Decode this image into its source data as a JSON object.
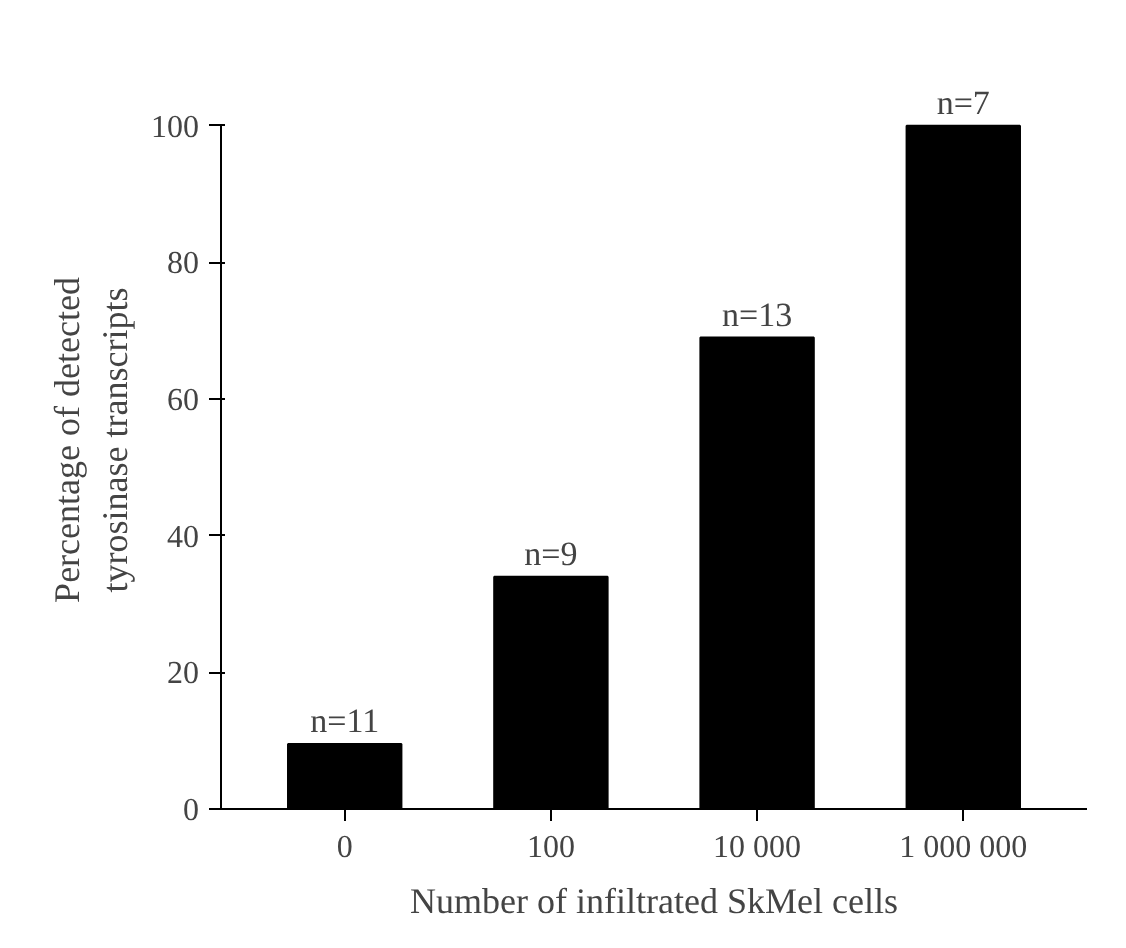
{
  "chart_data": {
    "type": "bar",
    "xlabel": "Number of infiltrated SkMel cells",
    "ylabel": "Percentage of detected\ntyrosinase transcripts",
    "categories": [
      "0",
      "100",
      "10 000",
      "1 000 000"
    ],
    "values": [
      9.5,
      34,
      69,
      100
    ],
    "color": "#000000",
    "ylim": [
      0,
      100
    ],
    "yticks": [
      0,
      20,
      40,
      60,
      80,
      100
    ],
    "annotations": [
      {
        "text": "n=11",
        "x": "0",
        "y": 9.5
      },
      {
        "text": "n=9",
        "x": "100",
        "y": 34
      },
      {
        "text": "n=13",
        "x": "10 000",
        "y": 69
      },
      {
        "text": "n=7",
        "x": "1 000 000",
        "y": 100
      }
    ]
  }
}
